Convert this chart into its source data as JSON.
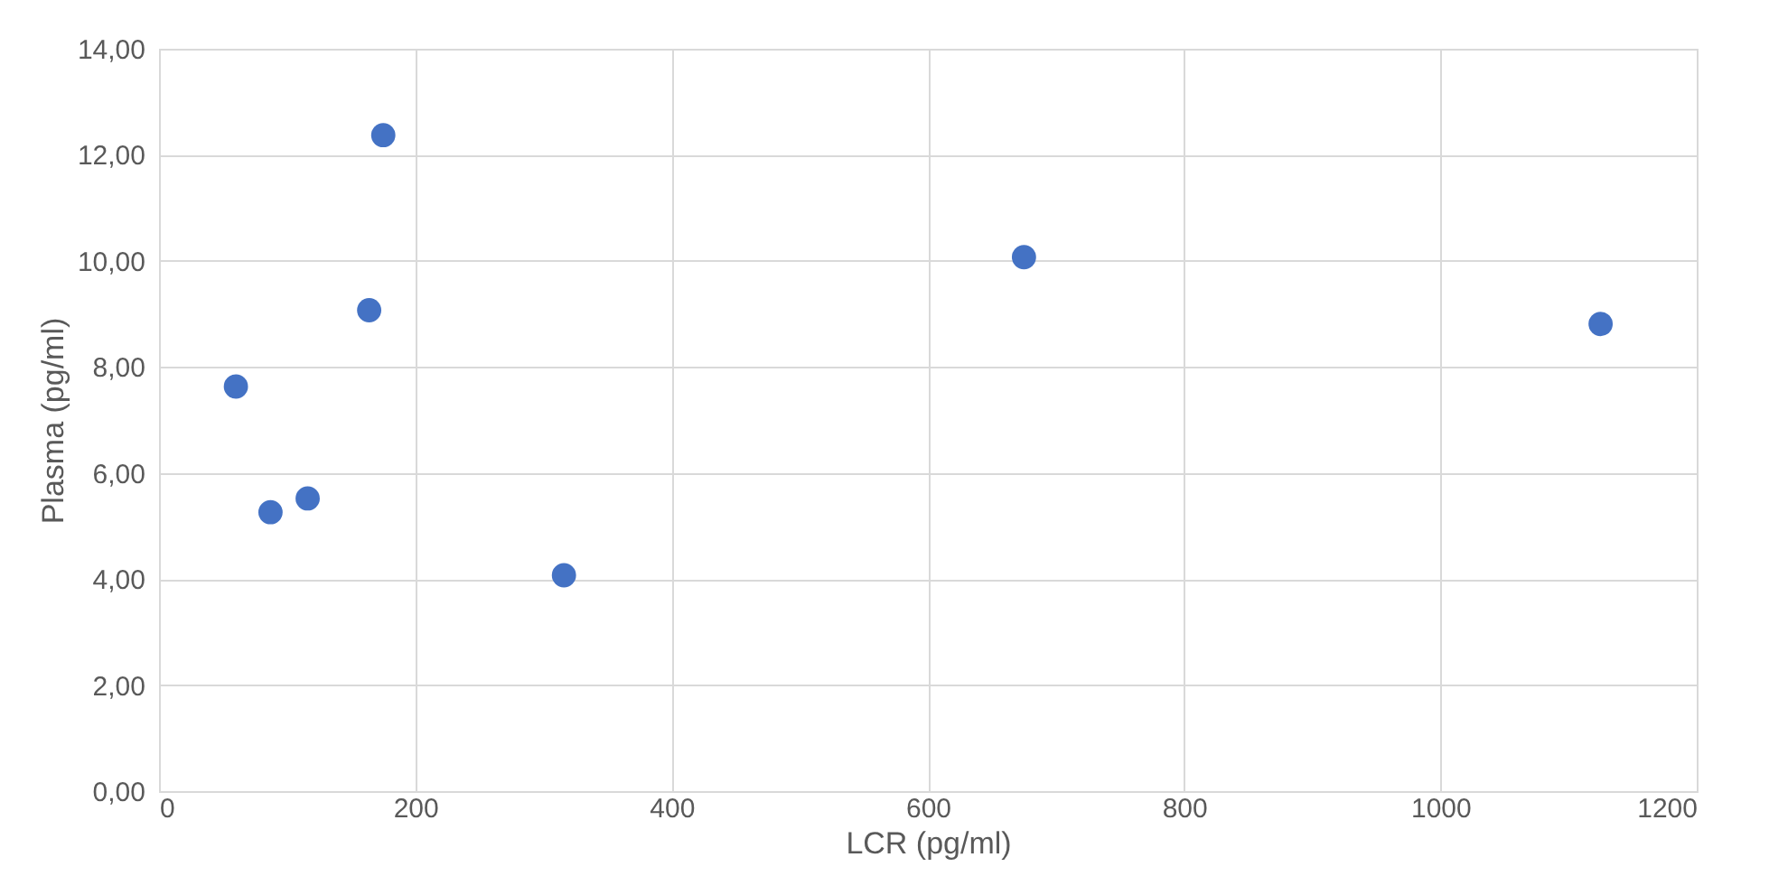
{
  "chart_data": {
    "type": "scatter",
    "xlabel": "LCR (pg/ml)",
    "ylabel": "Plasma (pg/ml)",
    "x": [
      60,
      87,
      116,
      164,
      175,
      316,
      675,
      1125
    ],
    "series": [
      {
        "color": "#4472c4",
        "values": [
          7.63,
          5.26,
          5.52,
          9.07,
          12.37,
          4.07,
          10.07,
          8.81
        ]
      }
    ],
    "xlim": [
      0,
      1200
    ],
    "xticks": [
      0,
      200,
      400,
      600,
      800,
      1000,
      1200
    ],
    "ylim": [
      0,
      14
    ],
    "yticks": [
      {
        "value": 0,
        "label": "0,00"
      },
      {
        "value": 2,
        "label": "2,00"
      },
      {
        "value": 4,
        "label": "4,00"
      },
      {
        "value": 6,
        "label": "6,00"
      },
      {
        "value": 8,
        "label": "8,00"
      },
      {
        "value": 10,
        "label": "10,00"
      },
      {
        "value": 12,
        "label": "12,00"
      },
      {
        "value": 14,
        "label": "14,00"
      }
    ],
    "grid": true,
    "marker": "circle",
    "legend": false
  }
}
